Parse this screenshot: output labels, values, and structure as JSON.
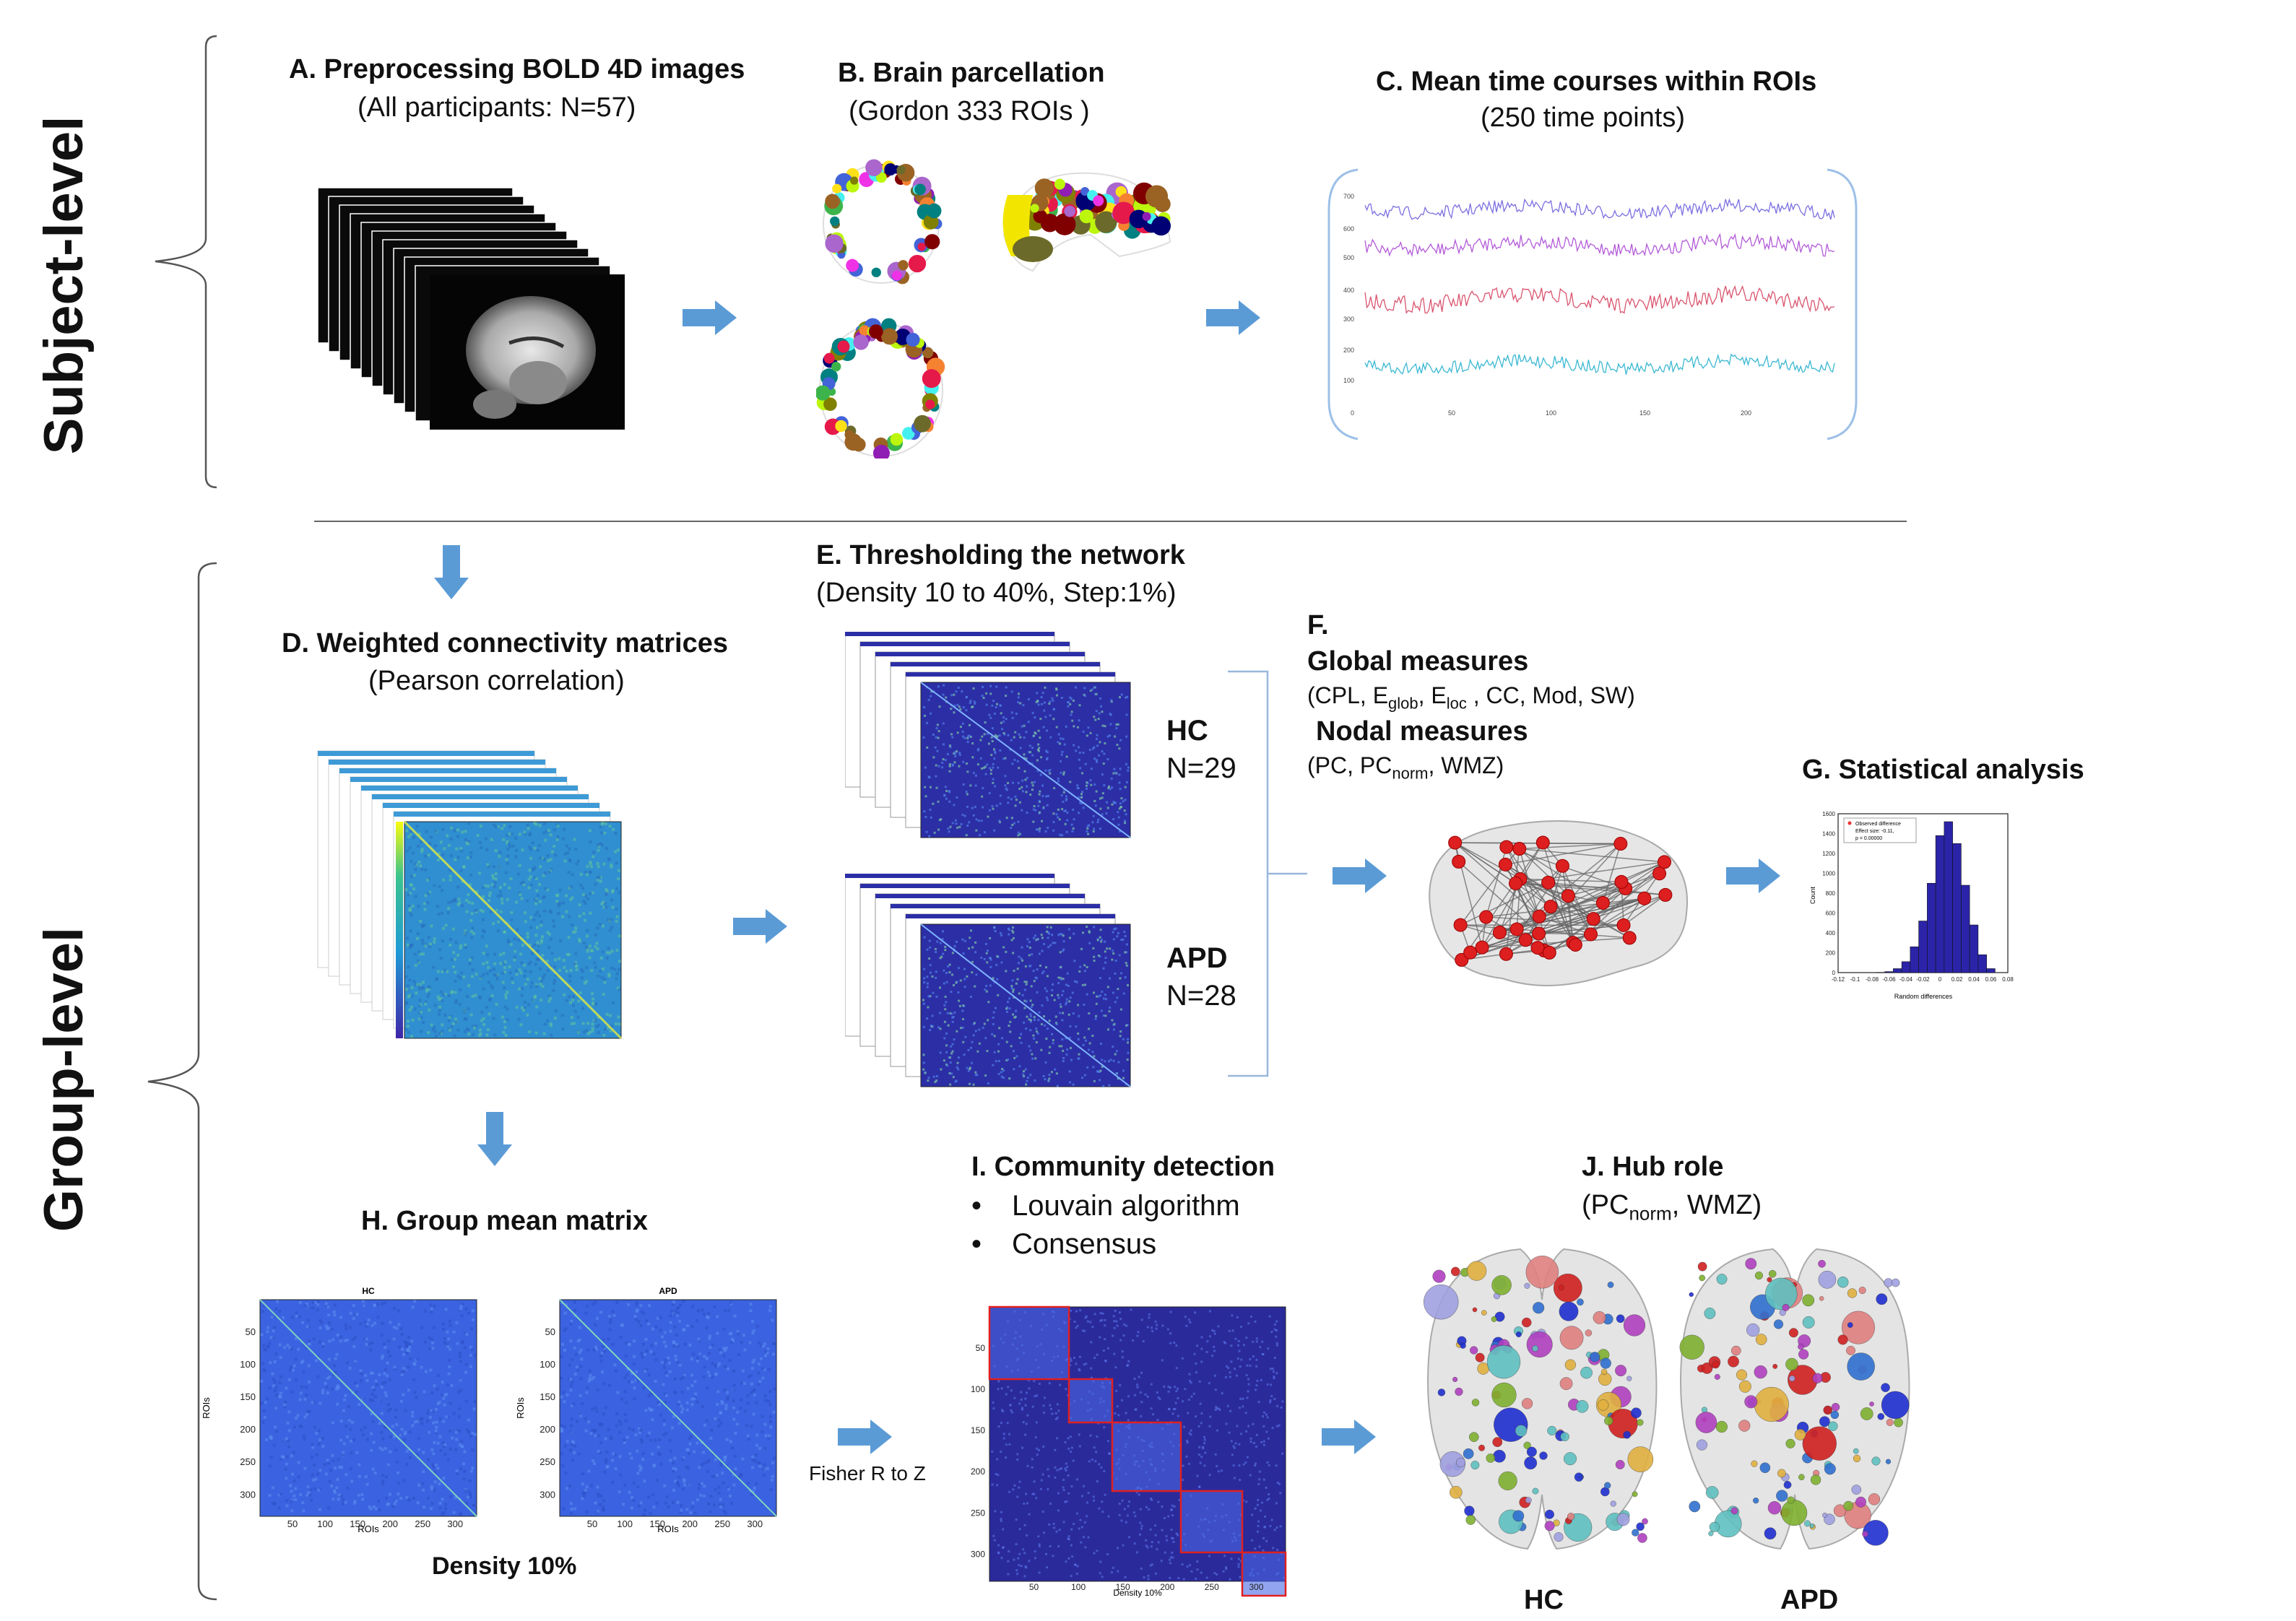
{
  "levels": {
    "subject": "Subject-level",
    "group": "Group-level"
  },
  "panels": {
    "A": {
      "title": "A. Preprocessing BOLD 4D images",
      "subtitle": "(All participants: N=57)"
    },
    "B": {
      "title": "B. Brain parcellation",
      "subtitle": "(Gordon 333 ROIs )"
    },
    "C": {
      "title": "C. Mean time courses within ROIs",
      "subtitle": "(250 time points)"
    },
    "D": {
      "title": "D. Weighted connectivity matrices",
      "subtitle": "(Pearson correlation)"
    },
    "E": {
      "title": "E. Thresholding the network",
      "subtitle": "(Density 10 to 40%, Step:1%)",
      "groups": [
        {
          "name": "HC",
          "n": "N=29"
        },
        {
          "name": "APD",
          "n": "N=28"
        }
      ]
    },
    "F": {
      "title": "F.",
      "global_title": "Global measures",
      "global_prefix": "(CPL, E",
      "global_sub1": "glob",
      "global_mid": ", E",
      "global_sub2": "loc",
      "global_suffix": " , CC, Mod, SW)",
      "nodal_title": "Nodal measures",
      "nodal_prefix": "(PC, PC",
      "nodal_sub": "norm",
      "nodal_suffix": ", WMZ)"
    },
    "G": {
      "title": "G. Statistical analysis"
    },
    "H": {
      "title": "H. Group mean matrix",
      "footer": "Density 10%",
      "left_label": "HC",
      "right_label": "APD",
      "xlabel": "ROIs",
      "ylabel": "ROIs"
    },
    "I": {
      "title": "I. Community detection",
      "bullets": [
        "Louvain algorithm",
        "Consensus"
      ],
      "arrow_label": "Fisher R to Z",
      "xlabel": "Density 10%"
    },
    "J": {
      "title": "J. Hub role",
      "sub_prefix": "(PC",
      "sub_sub": "norm",
      "sub_suffix": ", WMZ)",
      "labels": [
        "HC",
        "APD"
      ]
    }
  },
  "matrix_ticks": [
    "50",
    "100",
    "150",
    "200",
    "250",
    "300"
  ],
  "colors": {
    "arrow": "#5b9bd5",
    "matrix_blue": "#3b62e0",
    "matrix_dark": "#2b2a9a",
    "node_red": "#dd1f1f",
    "bracket": "#555555"
  },
  "chart_data": {
    "type": "bar",
    "title": "",
    "xlabel": "Random differences",
    "ylabel": "Count",
    "legend": [
      "Observed difference",
      "Effect size: -0.11,",
      "p = 0.00000"
    ],
    "legend_placement": "top-left",
    "x_ticks": [
      "-0.12",
      "-0.1",
      "-0.08",
      "-0.06",
      "-0.04",
      "-0.02",
      "0",
      "0.02",
      "0.04",
      "0.06",
      "0.08"
    ],
    "y_ticks": [
      "0",
      "200",
      "400",
      "600",
      "800",
      "1000",
      "1200",
      "1400",
      "1600"
    ],
    "xlim": [
      -0.12,
      0.08
    ],
    "ylim": [
      0,
      1600
    ],
    "categories": [
      -0.07,
      -0.06,
      -0.05,
      -0.04,
      -0.03,
      -0.02,
      -0.01,
      0,
      0.01,
      0.02,
      0.03,
      0.04,
      0.05,
      0.06
    ],
    "values": [
      2,
      10,
      40,
      110,
      260,
      520,
      900,
      1380,
      1520,
      1300,
      880,
      480,
      180,
      40
    ]
  }
}
